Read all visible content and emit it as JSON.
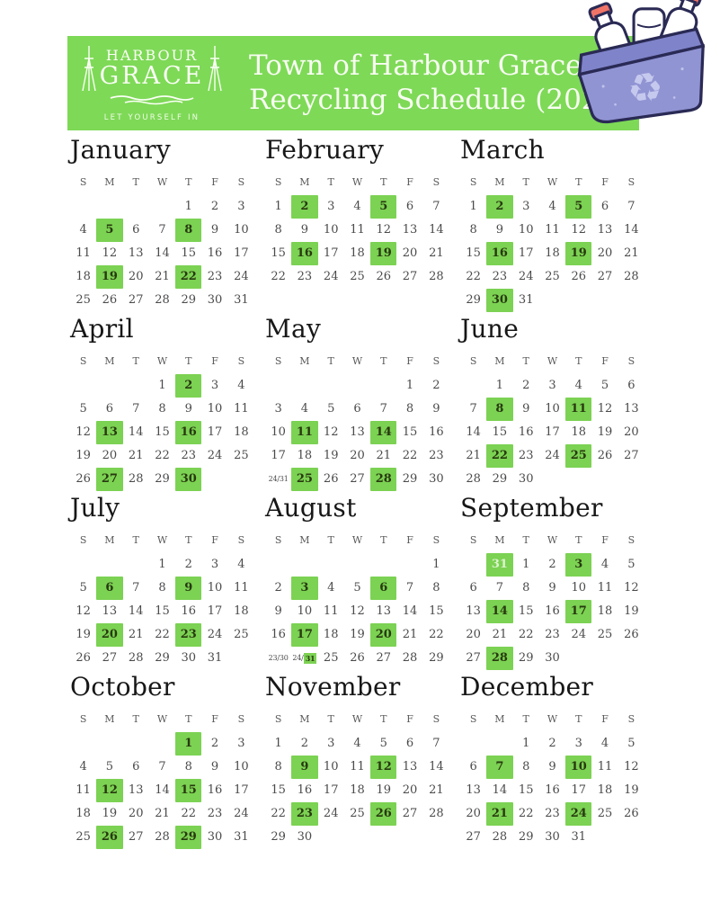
{
  "colors": {
    "header_green": "#7ed957",
    "highlight_green": "#7cd253",
    "highlight_text": "#27390f",
    "date_text": "#4a4a4a",
    "weekday_text": "#5a5a5a",
    "overflow_text": "#ddf3cf",
    "month_title_text": "#171717",
    "title_text": "#f8fdf2",
    "bin_body": "#9094d3",
    "bin_rim": "#7f83c9",
    "bin_outline": "#2a2a55",
    "bottle_cap": "#ef7467",
    "recycle_symbol": "#c6c9ee"
  },
  "header": {
    "title_line1": "Town of Harbour Grace",
    "title_line2": "Recycling Schedule (2026)",
    "logo_line1": "HARBOUR",
    "logo_line2": "GRACE",
    "tagline": "LET YOURSELF IN"
  },
  "icons": {
    "bin": "recycling-bin-with-bottles",
    "recycle_glyph": "♻"
  },
  "weekday_labels": [
    "S",
    "M",
    "T",
    "W",
    "T",
    "F",
    "S"
  ],
  "months": [
    {
      "name": "January",
      "cells": [
        {
          "t": ""
        },
        {
          "t": ""
        },
        {
          "t": ""
        },
        {
          "t": ""
        },
        {
          "t": "1"
        },
        {
          "t": "2"
        },
        {
          "t": "3"
        },
        {
          "t": "4"
        },
        {
          "t": "5",
          "h": true
        },
        {
          "t": "6"
        },
        {
          "t": "7"
        },
        {
          "t": "8",
          "h": true
        },
        {
          "t": "9"
        },
        {
          "t": "10"
        },
        {
          "t": "11"
        },
        {
          "t": "12"
        },
        {
          "t": "13"
        },
        {
          "t": "14"
        },
        {
          "t": "15"
        },
        {
          "t": "16"
        },
        {
          "t": "17"
        },
        {
          "t": "18"
        },
        {
          "t": "19",
          "h": true
        },
        {
          "t": "20"
        },
        {
          "t": "21"
        },
        {
          "t": "22",
          "h": true
        },
        {
          "t": "23"
        },
        {
          "t": "24"
        },
        {
          "t": "25"
        },
        {
          "t": "26"
        },
        {
          "t": "27"
        },
        {
          "t": "28"
        },
        {
          "t": "29"
        },
        {
          "t": "30"
        },
        {
          "t": "31"
        }
      ]
    },
    {
      "name": "February",
      "cells": [
        {
          "t": "1"
        },
        {
          "t": "2",
          "h": true
        },
        {
          "t": "3"
        },
        {
          "t": "4"
        },
        {
          "t": "5",
          "h": true
        },
        {
          "t": "6"
        },
        {
          "t": "7"
        },
        {
          "t": "8"
        },
        {
          "t": "9"
        },
        {
          "t": "10"
        },
        {
          "t": "11"
        },
        {
          "t": "12"
        },
        {
          "t": "13"
        },
        {
          "t": "14"
        },
        {
          "t": "15"
        },
        {
          "t": "16",
          "h": true
        },
        {
          "t": "17"
        },
        {
          "t": "18"
        },
        {
          "t": "19",
          "h": true
        },
        {
          "t": "20"
        },
        {
          "t": "21"
        },
        {
          "t": "22"
        },
        {
          "t": "23"
        },
        {
          "t": "24"
        },
        {
          "t": "25"
        },
        {
          "t": "26"
        },
        {
          "t": "27"
        },
        {
          "t": "28"
        }
      ]
    },
    {
      "name": "March",
      "cells": [
        {
          "t": "1"
        },
        {
          "t": "2",
          "h": true
        },
        {
          "t": "3"
        },
        {
          "t": "4"
        },
        {
          "t": "5",
          "h": true
        },
        {
          "t": "6"
        },
        {
          "t": "7"
        },
        {
          "t": "8"
        },
        {
          "t": "9"
        },
        {
          "t": "10"
        },
        {
          "t": "11"
        },
        {
          "t": "12"
        },
        {
          "t": "13"
        },
        {
          "t": "14"
        },
        {
          "t": "15"
        },
        {
          "t": "16",
          "h": true
        },
        {
          "t": "17"
        },
        {
          "t": "18"
        },
        {
          "t": "19",
          "h": true
        },
        {
          "t": "20"
        },
        {
          "t": "21"
        },
        {
          "t": "22"
        },
        {
          "t": "23"
        },
        {
          "t": "24"
        },
        {
          "t": "25"
        },
        {
          "t": "26"
        },
        {
          "t": "27"
        },
        {
          "t": "28"
        },
        {
          "t": "29"
        },
        {
          "t": "30",
          "h": true
        },
        {
          "t": "31"
        }
      ]
    },
    {
      "name": "April",
      "cells": [
        {
          "t": ""
        },
        {
          "t": ""
        },
        {
          "t": ""
        },
        {
          "t": "1"
        },
        {
          "t": "2",
          "h": true
        },
        {
          "t": "3"
        },
        {
          "t": "4"
        },
        {
          "t": "5"
        },
        {
          "t": "6"
        },
        {
          "t": "7"
        },
        {
          "t": "8"
        },
        {
          "t": "9"
        },
        {
          "t": "10"
        },
        {
          "t": "11"
        },
        {
          "t": "12"
        },
        {
          "t": "13",
          "h": true
        },
        {
          "t": "14"
        },
        {
          "t": "15"
        },
        {
          "t": "16",
          "h": true
        },
        {
          "t": "17"
        },
        {
          "t": "18"
        },
        {
          "t": "19"
        },
        {
          "t": "20"
        },
        {
          "t": "21"
        },
        {
          "t": "22"
        },
        {
          "t": "23"
        },
        {
          "t": "24"
        },
        {
          "t": "25"
        },
        {
          "t": "26"
        },
        {
          "t": "27",
          "h": true
        },
        {
          "t": "28"
        },
        {
          "t": "29"
        },
        {
          "t": "30",
          "h": true
        }
      ]
    },
    {
      "name": "May",
      "cells": [
        {
          "t": ""
        },
        {
          "t": ""
        },
        {
          "t": ""
        },
        {
          "t": ""
        },
        {
          "t": ""
        },
        {
          "t": "1"
        },
        {
          "t": "2"
        },
        {
          "t": "3"
        },
        {
          "t": "4"
        },
        {
          "t": "5"
        },
        {
          "t": "6"
        },
        {
          "t": "7"
        },
        {
          "t": "8"
        },
        {
          "t": "9"
        },
        {
          "t": "10"
        },
        {
          "t": "11",
          "h": true
        },
        {
          "t": "12"
        },
        {
          "t": "13"
        },
        {
          "t": "14",
          "h": true
        },
        {
          "t": "15"
        },
        {
          "t": "16"
        },
        {
          "t": "17"
        },
        {
          "t": "18"
        },
        {
          "t": "19"
        },
        {
          "t": "20"
        },
        {
          "t": "21"
        },
        {
          "t": "22"
        },
        {
          "t": "23"
        },
        {
          "t": "24/31",
          "s": true
        },
        {
          "t": "25",
          "h": true
        },
        {
          "t": "26"
        },
        {
          "t": "27"
        },
        {
          "t": "28",
          "h": true
        },
        {
          "t": "29"
        },
        {
          "t": "30"
        }
      ]
    },
    {
      "name": "June",
      "cells": [
        {
          "t": ""
        },
        {
          "t": "1"
        },
        {
          "t": "2"
        },
        {
          "t": "3"
        },
        {
          "t": "4"
        },
        {
          "t": "5"
        },
        {
          "t": "6"
        },
        {
          "t": "7"
        },
        {
          "t": "8",
          "h": true
        },
        {
          "t": "9"
        },
        {
          "t": "10"
        },
        {
          "t": "11",
          "h": true
        },
        {
          "t": "12"
        },
        {
          "t": "13"
        },
        {
          "t": "14"
        },
        {
          "t": "15"
        },
        {
          "t": "16"
        },
        {
          "t": "17"
        },
        {
          "t": "18"
        },
        {
          "t": "19"
        },
        {
          "t": "20"
        },
        {
          "t": "21"
        },
        {
          "t": "22",
          "h": true
        },
        {
          "t": "23"
        },
        {
          "t": "24"
        },
        {
          "t": "25",
          "h": true
        },
        {
          "t": "26"
        },
        {
          "t": "27"
        },
        {
          "t": "28"
        },
        {
          "t": "29"
        },
        {
          "t": "30"
        }
      ]
    },
    {
      "name": "July",
      "cells": [
        {
          "t": ""
        },
        {
          "t": ""
        },
        {
          "t": ""
        },
        {
          "t": "1"
        },
        {
          "t": "2"
        },
        {
          "t": "3"
        },
        {
          "t": "4"
        },
        {
          "t": "5"
        },
        {
          "t": "6",
          "h": true
        },
        {
          "t": "7"
        },
        {
          "t": "8"
        },
        {
          "t": "9",
          "h": true
        },
        {
          "t": "10"
        },
        {
          "t": "11"
        },
        {
          "t": "12"
        },
        {
          "t": "13"
        },
        {
          "t": "14"
        },
        {
          "t": "15"
        },
        {
          "t": "16"
        },
        {
          "t": "17"
        },
        {
          "t": "18"
        },
        {
          "t": "19"
        },
        {
          "t": "20",
          "h": true
        },
        {
          "t": "21"
        },
        {
          "t": "22"
        },
        {
          "t": "23",
          "h": true
        },
        {
          "t": "24"
        },
        {
          "t": "25"
        },
        {
          "t": "26"
        },
        {
          "t": "27"
        },
        {
          "t": "28"
        },
        {
          "t": "29"
        },
        {
          "t": "30"
        },
        {
          "t": "31"
        }
      ]
    },
    {
      "name": "August",
      "cells": [
        {
          "t": ""
        },
        {
          "t": ""
        },
        {
          "t": ""
        },
        {
          "t": ""
        },
        {
          "t": ""
        },
        {
          "t": ""
        },
        {
          "t": "1"
        },
        {
          "t": "2"
        },
        {
          "t": "3",
          "h": true
        },
        {
          "t": "4"
        },
        {
          "t": "5"
        },
        {
          "t": "6",
          "h": true
        },
        {
          "t": "7"
        },
        {
          "t": "8"
        },
        {
          "t": "9"
        },
        {
          "t": "10"
        },
        {
          "t": "11"
        },
        {
          "t": "12"
        },
        {
          "t": "13"
        },
        {
          "t": "14"
        },
        {
          "t": "15"
        },
        {
          "t": "16"
        },
        {
          "t": "17",
          "h": true
        },
        {
          "t": "18"
        },
        {
          "t": "19"
        },
        {
          "t": "20",
          "h": true
        },
        {
          "t": "21"
        },
        {
          "t": "22"
        },
        {
          "t": "23/30",
          "s": true
        },
        {
          "t": "24/",
          "t2": "31",
          "s": true,
          "h2": true
        },
        {
          "t": "25"
        },
        {
          "t": "26"
        },
        {
          "t": "27"
        },
        {
          "t": "28"
        },
        {
          "t": "29"
        }
      ]
    },
    {
      "name": "September",
      "cells": [
        {
          "t": ""
        },
        {
          "t": "31",
          "h": true,
          "l": true
        },
        {
          "t": "1"
        },
        {
          "t": "2"
        },
        {
          "t": "3",
          "h": true
        },
        {
          "t": "4"
        },
        {
          "t": "5"
        },
        {
          "t": "6"
        },
        {
          "t": "7"
        },
        {
          "t": "8"
        },
        {
          "t": "9"
        },
        {
          "t": "10"
        },
        {
          "t": "11"
        },
        {
          "t": "12"
        },
        {
          "t": "13"
        },
        {
          "t": "14",
          "h": true
        },
        {
          "t": "15"
        },
        {
          "t": "16"
        },
        {
          "t": "17",
          "h": true
        },
        {
          "t": "18"
        },
        {
          "t": "19"
        },
        {
          "t": "20"
        },
        {
          "t": "21"
        },
        {
          "t": "22"
        },
        {
          "t": "23"
        },
        {
          "t": "24"
        },
        {
          "t": "25"
        },
        {
          "t": "26"
        },
        {
          "t": "27"
        },
        {
          "t": "28",
          "h": true
        },
        {
          "t": "29"
        },
        {
          "t": "30"
        }
      ]
    },
    {
      "name": "October",
      "cells": [
        {
          "t": ""
        },
        {
          "t": ""
        },
        {
          "t": ""
        },
        {
          "t": ""
        },
        {
          "t": "1",
          "h": true
        },
        {
          "t": "2"
        },
        {
          "t": "3"
        },
        {
          "t": "4"
        },
        {
          "t": "5"
        },
        {
          "t": "6"
        },
        {
          "t": "7"
        },
        {
          "t": "8"
        },
        {
          "t": "9"
        },
        {
          "t": "10"
        },
        {
          "t": "11"
        },
        {
          "t": "12",
          "h": true
        },
        {
          "t": "13"
        },
        {
          "t": "14"
        },
        {
          "t": "15",
          "h": true
        },
        {
          "t": "16"
        },
        {
          "t": "17"
        },
        {
          "t": "18"
        },
        {
          "t": "19"
        },
        {
          "t": "20"
        },
        {
          "t": "21"
        },
        {
          "t": "22"
        },
        {
          "t": "23"
        },
        {
          "t": "24"
        },
        {
          "t": "25"
        },
        {
          "t": "26",
          "h": true
        },
        {
          "t": "27"
        },
        {
          "t": "28"
        },
        {
          "t": "29",
          "h": true
        },
        {
          "t": "30"
        },
        {
          "t": "31"
        }
      ]
    },
    {
      "name": "November",
      "cells": [
        {
          "t": "1"
        },
        {
          "t": "2"
        },
        {
          "t": "3"
        },
        {
          "t": "4"
        },
        {
          "t": "5"
        },
        {
          "t": "6"
        },
        {
          "t": "7"
        },
        {
          "t": "8"
        },
        {
          "t": "9",
          "h": true
        },
        {
          "t": "10"
        },
        {
          "t": "11"
        },
        {
          "t": "12",
          "h": true
        },
        {
          "t": "13"
        },
        {
          "t": "14"
        },
        {
          "t": "15"
        },
        {
          "t": "16"
        },
        {
          "t": "17"
        },
        {
          "t": "18"
        },
        {
          "t": "19"
        },
        {
          "t": "20"
        },
        {
          "t": "21"
        },
        {
          "t": "22"
        },
        {
          "t": "23",
          "h": true
        },
        {
          "t": "24"
        },
        {
          "t": "25"
        },
        {
          "t": "26",
          "h": true
        },
        {
          "t": "27"
        },
        {
          "t": "28"
        },
        {
          "t": "29"
        },
        {
          "t": "30"
        }
      ]
    },
    {
      "name": "December",
      "cells": [
        {
          "t": ""
        },
        {
          "t": ""
        },
        {
          "t": "1"
        },
        {
          "t": "2"
        },
        {
          "t": "3"
        },
        {
          "t": "4"
        },
        {
          "t": "5"
        },
        {
          "t": "6"
        },
        {
          "t": "7",
          "h": true
        },
        {
          "t": "8"
        },
        {
          "t": "9"
        },
        {
          "t": "10",
          "h": true
        },
        {
          "t": "11"
        },
        {
          "t": "12"
        },
        {
          "t": "13"
        },
        {
          "t": "14"
        },
        {
          "t": "15"
        },
        {
          "t": "16"
        },
        {
          "t": "17"
        },
        {
          "t": "18"
        },
        {
          "t": "19"
        },
        {
          "t": "20"
        },
        {
          "t": "21",
          "h": true
        },
        {
          "t": "22"
        },
        {
          "t": "23"
        },
        {
          "t": "24",
          "h": true
        },
        {
          "t": "25"
        },
        {
          "t": "26"
        },
        {
          "t": "27"
        },
        {
          "t": "28"
        },
        {
          "t": "29"
        },
        {
          "t": "30"
        },
        {
          "t": "31"
        }
      ]
    }
  ]
}
